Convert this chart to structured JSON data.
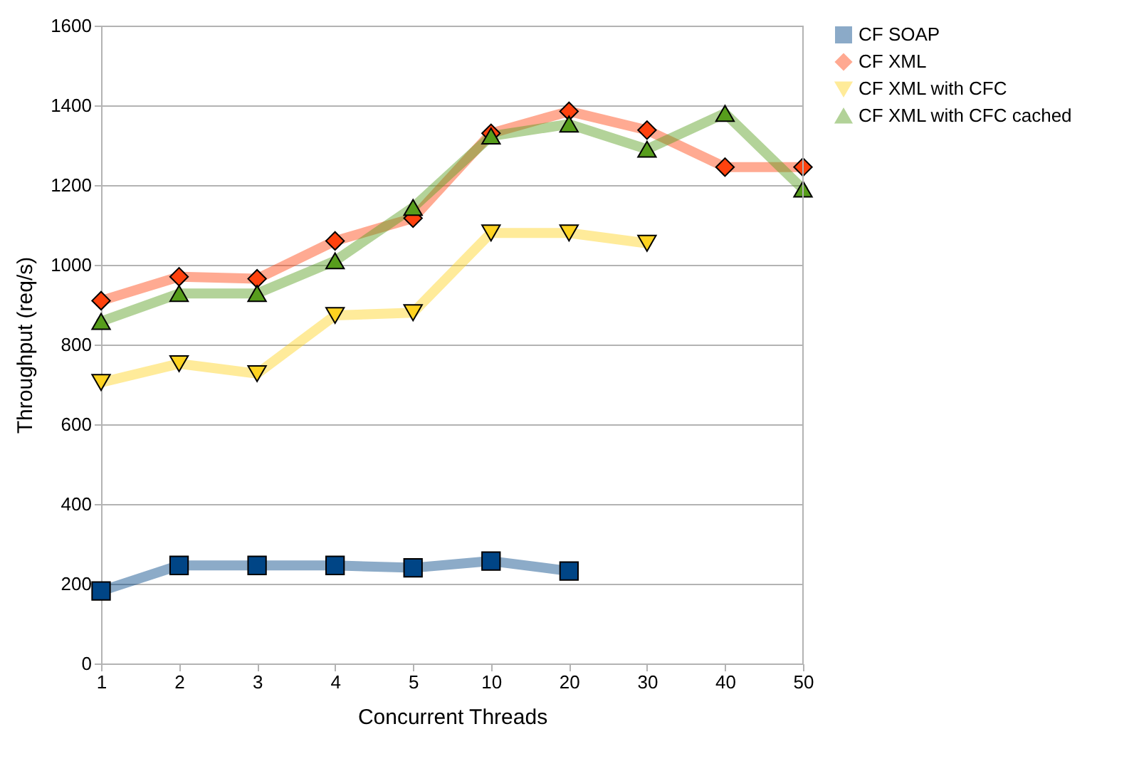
{
  "chart_data": {
    "type": "line",
    "xlabel": "Concurrent Threads",
    "ylabel": "Throughput (req/s)",
    "categories": [
      "1",
      "2",
      "3",
      "4",
      "5",
      "10",
      "20",
      "30",
      "40",
      "50"
    ],
    "ylim": [
      0,
      1600
    ],
    "yticks": [
      0,
      200,
      400,
      600,
      800,
      1000,
      1200,
      1400,
      1600
    ],
    "grid": "y",
    "legend": "right",
    "series": [
      {
        "name": "CF SOAP",
        "color": "#004586",
        "marker": "square",
        "values": [
          182,
          246,
          246,
          246,
          240,
          257,
          232,
          null,
          null,
          null
        ]
      },
      {
        "name": "CF XML",
        "color": "#ff420e",
        "marker": "diamond",
        "values": [
          910,
          970,
          965,
          1060,
          1117,
          1330,
          1385,
          1338,
          1245,
          1245
        ]
      },
      {
        "name": "CF XML with CFC",
        "color": "#ffd320",
        "marker": "triangle-down",
        "values": [
          705,
          752,
          727,
          873,
          880,
          1080,
          1080,
          1054,
          null,
          null
        ]
      },
      {
        "name": "CF XML with CFC cached",
        "color": "#579d1c",
        "marker": "triangle",
        "values": [
          858,
          928,
          928,
          1010,
          1144,
          1323,
          1353,
          1290,
          1380,
          1190
        ]
      }
    ]
  }
}
